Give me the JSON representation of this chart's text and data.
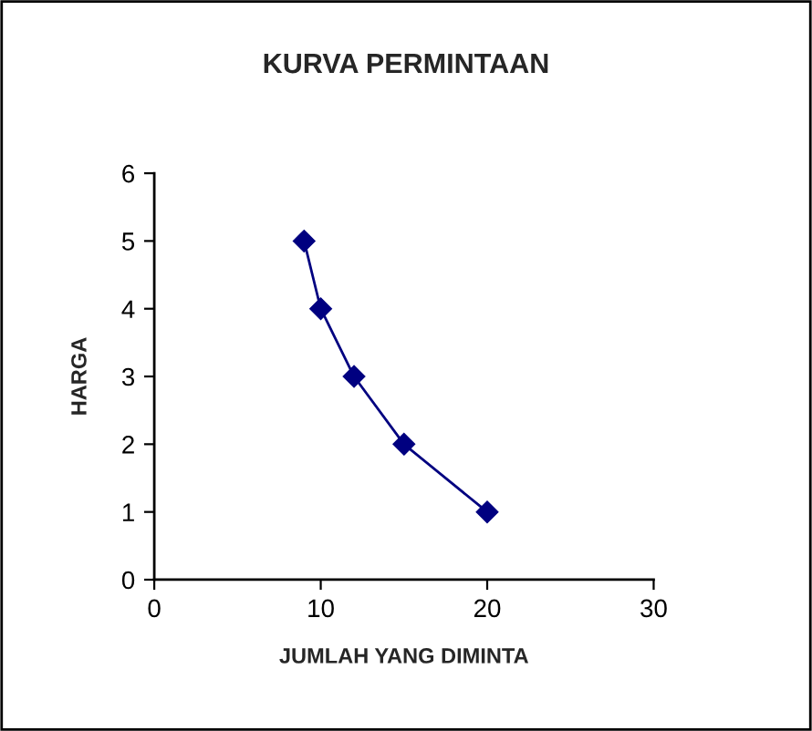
{
  "chart_data": {
    "type": "line",
    "title": "KURVA PERMINTAAN",
    "xlabel": "JUMLAH YANG DIMINTA",
    "ylabel": "HARGA",
    "x": [
      9,
      10,
      12,
      15,
      20
    ],
    "series": [
      {
        "color": "#000080",
        "values": [
          5,
          4,
          3,
          2,
          1
        ]
      }
    ],
    "xlim": [
      0,
      30
    ],
    "xticks": [
      0,
      10,
      20,
      30
    ],
    "ylim": [
      0,
      6
    ],
    "yticks": [
      0,
      1,
      2,
      3,
      4,
      5,
      6
    ],
    "grid": false,
    "legend": false,
    "marker": "diamond",
    "line_style": "solid"
  }
}
